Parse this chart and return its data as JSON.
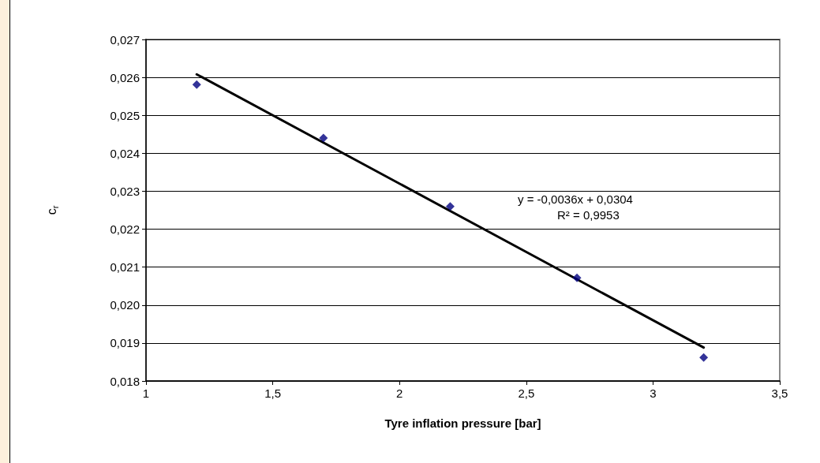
{
  "chart_data": {
    "type": "scatter",
    "xlabel": "Tyre inflation pressure [bar]",
    "ylabel": "c$_{r}$",
    "series": [
      {
        "color": "#000080",
        "marker": "diamond",
        "x": [
          1.2,
          1.7,
          2.2,
          2.7,
          3.2
        ],
        "values": [
          0.02581,
          0.0244,
          0.0226,
          0.02072,
          0.01862
        ]
      },
      {
        "type": "line",
        "color": "#000000",
        "marker": "none",
        "line_style": "solid",
        "x": [
          1.2,
          3.2
        ],
        "values": [
          0.02608,
          0.01888
        ]
      }
    ],
    "annotations": [
      "y = -0,0036x + 0,0304",
      "R² = 0,9953"
    ],
    "xlim": [
      1,
      3.5
    ],
    "xticks": [
      1,
      {
        "value": 1.5,
        "label": "1,5"
      },
      2,
      {
        "value": 2.5,
        "label": "2,5"
      },
      3,
      {
        "value": 3.5,
        "label": "3,5"
      }
    ],
    "ylim": [
      0.018,
      0.027
    ],
    "yticks": [
      {
        "value": 0.018,
        "label": "0,018"
      },
      {
        "value": 0.019,
        "label": "0,019"
      },
      {
        "value": 0.02,
        "label": "0,020"
      },
      {
        "value": 0.021,
        "label": "0,021"
      },
      {
        "value": 0.022,
        "label": "0,022"
      },
      {
        "value": 0.023,
        "label": "0,023"
      },
      {
        "value": 0.024,
        "label": "0,024"
      },
      {
        "value": 0.025,
        "label": "0,025"
      },
      {
        "value": 0.026,
        "label": "0,026"
      },
      {
        "value": 0.027,
        "label": "0,027"
      }
    ],
    "grid": "y"
  }
}
